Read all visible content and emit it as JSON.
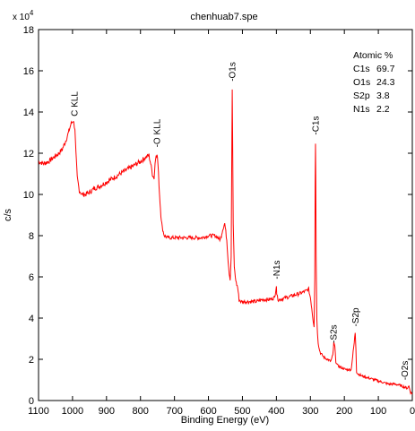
{
  "chart_data": {
    "type": "line",
    "title": "chenhuab7.spe",
    "xlabel": "Binding Energy (eV)",
    "ylabel": "c/s",
    "y_multiplier_label": "x 10",
    "y_multiplier_exponent": "4",
    "xlim": [
      1100,
      0
    ],
    "ylim": [
      0,
      18
    ],
    "x_ticks": [
      1100,
      1000,
      900,
      800,
      700,
      600,
      500,
      400,
      300,
      200,
      100,
      0
    ],
    "y_ticks": [
      0,
      2,
      4,
      6,
      8,
      10,
      12,
      14,
      16,
      18
    ],
    "grid": false,
    "line_color": "#ff0000",
    "series": [
      {
        "x": [
          1100,
          1085,
          1070,
          1055,
          1040,
          1030,
          1020,
          1012,
          1005,
          998,
          993,
          990,
          986,
          980,
          972,
          962,
          950,
          935,
          920,
          900,
          880,
          860,
          840,
          820,
          800,
          785,
          775,
          770,
          765,
          760,
          757,
          754,
          750,
          747,
          744,
          740,
          736,
          730,
          720,
          700,
          680,
          660,
          640,
          620,
          600,
          580,
          565,
          558,
          552,
          546,
          542,
          539,
          536,
          533,
          531,
          530,
          529,
          527,
          524,
          521,
          518,
          514,
          510,
          505,
          500,
          480,
          460,
          440,
          420,
          405,
          400,
          399,
          397,
          394,
          390,
          370,
          350,
          330,
          315,
          305,
          300,
          296,
          292,
          289,
          287,
          286,
          285,
          284,
          283,
          281,
          279,
          277,
          274,
          270,
          260,
          250,
          240,
          234,
          231,
          228,
          225,
          220,
          210,
          195,
          180,
          171,
          168,
          166,
          164,
          160,
          150,
          130,
          110,
          90,
          70,
          50,
          30,
          15,
          10,
          5,
          0
        ],
        "y": [
          11.6,
          11.5,
          11.6,
          11.8,
          12.0,
          12.2,
          12.6,
          13.0,
          13.4,
          13.6,
          13.2,
          12.0,
          10.8,
          10.2,
          10.0,
          10.0,
          10.1,
          10.3,
          10.4,
          10.6,
          10.8,
          11.0,
          11.2,
          11.4,
          11.6,
          11.8,
          11.9,
          11.5,
          11.0,
          10.8,
          11.5,
          12.0,
          11.8,
          11.0,
          10.0,
          9.0,
          8.4,
          8.0,
          7.9,
          7.9,
          7.9,
          7.9,
          7.9,
          7.9,
          8.0,
          8.0,
          7.8,
          8.3,
          8.6,
          7.8,
          6.8,
          6.2,
          5.9,
          7.0,
          12.5,
          15.1,
          13.0,
          8.5,
          6.5,
          6.0,
          5.7,
          5.5,
          4.9,
          4.8,
          4.8,
          4.8,
          4.8,
          4.9,
          4.9,
          5.0,
          5.6,
          5.2,
          5.0,
          4.9,
          4.9,
          5.0,
          5.1,
          5.2,
          5.3,
          5.4,
          5.0,
          4.5,
          3.9,
          3.6,
          6.0,
          10.5,
          12.5,
          11.0,
          7.0,
          4.0,
          3.3,
          2.8,
          2.5,
          2.3,
          2.1,
          2.0,
          1.9,
          2.2,
          2.8,
          2.6,
          1.9,
          1.7,
          1.6,
          1.5,
          1.5,
          2.8,
          3.3,
          2.5,
          1.4,
          1.3,
          1.2,
          1.1,
          1.0,
          0.9,
          0.8,
          0.8,
          0.7,
          0.6,
          0.7,
          0.4,
          0.3
        ]
      }
    ],
    "annotations": [
      {
        "text": "C KLL",
        "x": 995,
        "y": 13.7
      },
      {
        "text": "-O KLL",
        "x": 752,
        "y": 12.2
      },
      {
        "text": "-O1s",
        "x": 530,
        "y": 15.4
      },
      {
        "text": "-N1s",
        "x": 400,
        "y": 5.8
      },
      {
        "text": "-C1s",
        "x": 285,
        "y": 12.8
      },
      {
        "text": "-S2s",
        "x": 232,
        "y": 2.7
      },
      {
        "text": "-S2p",
        "x": 168,
        "y": 3.5
      },
      {
        "text": "-O2s",
        "x": 22,
        "y": 0.9
      }
    ],
    "legend": {
      "title": "Atomic %",
      "entries": [
        {
          "name": "C1s",
          "value": "69.7"
        },
        {
          "name": "O1s",
          "value": "24.3"
        },
        {
          "name": "S2p",
          "value": "3.8"
        },
        {
          "name": "N1s",
          "value": "2.2"
        }
      ]
    }
  }
}
